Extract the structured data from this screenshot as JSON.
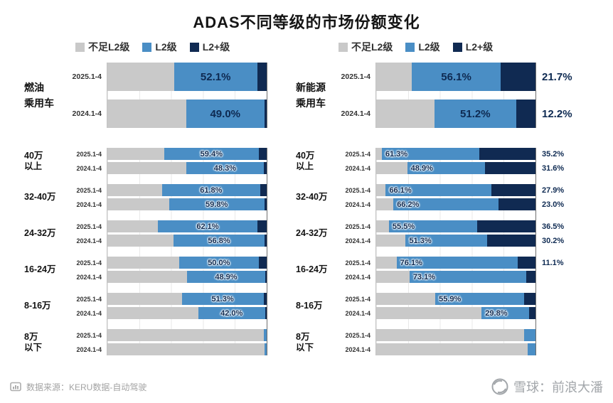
{
  "title": "ADAS不同等级的市场份额变化",
  "colors": {
    "gray": "#c9c9c9",
    "l2": "#4a8ec5",
    "l2plus": "#102a52",
    "label": "#0e2a52"
  },
  "legend": {
    "items": [
      {
        "label": "不足L2级",
        "key": "gray"
      },
      {
        "label": "L2级",
        "key": "l2"
      },
      {
        "label": "L2+级",
        "key": "l2plus"
      }
    ]
  },
  "footer": {
    "source_label": "数据来源：KERU数据-自动驾驶",
    "watermark": "雪球：前浪大潘"
  },
  "chart_data": {
    "type": "bar",
    "orientation": "horizontal",
    "stacked": true,
    "unit": "%",
    "x_range": [
      0,
      100
    ],
    "series_names": [
      "不足L2级",
      "L2级",
      "L2+级"
    ],
    "panels": [
      {
        "title": "燃油乘用车",
        "title_lines": [
          "燃油",
          "乘用车"
        ],
        "overall": [
          {
            "period": "2025.1-4",
            "l2": 52.1,
            "l2_label": "52.1%",
            "l2plus": 6,
            "l2plus_label": ""
          },
          {
            "period": "2024.1-4",
            "l2": 49.0,
            "l2_label": "49.0%",
            "l2plus": 1.5,
            "l2plus_label": ""
          }
        ],
        "price_bands": [
          {
            "label": "40万以上",
            "label_lines": [
              "40万",
              "以上"
            ],
            "rows": [
              {
                "period": "2025.1-4",
                "l2": 59.4,
                "l2_label": "59.4%",
                "l2plus": 5,
                "l2plus_label": ""
              },
              {
                "period": "2024.1-4",
                "l2": 48.3,
                "l2_label": "48.3%",
                "l2plus": 2,
                "l2plus_label": ""
              }
            ]
          },
          {
            "label": "32-40万",
            "label_lines": [
              "32-40万"
            ],
            "rows": [
              {
                "period": "2025.1-4",
                "l2": 61.8,
                "l2_label": "61.8%",
                "l2plus": 4,
                "l2plus_label": ""
              },
              {
                "period": "2024.1-4",
                "l2": 59.8,
                "l2_label": "59.8%",
                "l2plus": 1.5,
                "l2plus_label": ""
              }
            ]
          },
          {
            "label": "24-32万",
            "label_lines": [
              "24-32万"
            ],
            "rows": [
              {
                "period": "2025.1-4",
                "l2": 62.1,
                "l2_label": "62.1%",
                "l2plus": 6,
                "l2plus_label": ""
              },
              {
                "period": "2024.1-4",
                "l2": 56.8,
                "l2_label": "56.8%",
                "l2plus": 1.5,
                "l2plus_label": ""
              }
            ]
          },
          {
            "label": "16-24万",
            "label_lines": [
              "16-24万"
            ],
            "rows": [
              {
                "period": "2025.1-4",
                "l2": 50.0,
                "l2_label": "50.0%",
                "l2plus": 5,
                "l2plus_label": ""
              },
              {
                "period": "2024.1-4",
                "l2": 48.9,
                "l2_label": "48.9%",
                "l2plus": 1,
                "l2plus_label": ""
              }
            ]
          },
          {
            "label": "8-16万",
            "label_lines": [
              "8-16万"
            ],
            "rows": [
              {
                "period": "2025.1-4",
                "l2": 51.3,
                "l2_label": "51.3%",
                "l2plus": 2,
                "l2plus_label": ""
              },
              {
                "period": "2024.1-4",
                "l2": 42.0,
                "l2_label": "42.0%",
                "l2plus": 1,
                "l2plus_label": ""
              }
            ]
          },
          {
            "label": "8万以下",
            "label_lines": [
              "8万",
              "以下"
            ],
            "rows": [
              {
                "period": "2025.1-4",
                "l2": 2,
                "l2_label": "",
                "l2plus": 0,
                "l2plus_label": ""
              },
              {
                "period": "2024.1-4",
                "l2": 1.5,
                "l2_label": "",
                "l2plus": 0,
                "l2plus_label": ""
              }
            ]
          }
        ]
      },
      {
        "title": "新能源乘用车",
        "title_lines": [
          "新能源",
          "乘用车"
        ],
        "overall": [
          {
            "period": "2025.1-4",
            "l2": 56.1,
            "l2_label": "56.1%",
            "l2plus": 21.7,
            "l2plus_label": "21.7%"
          },
          {
            "period": "2024.1-4",
            "l2": 51.2,
            "l2_label": "51.2%",
            "l2plus": 12.2,
            "l2plus_label": "12.2%"
          }
        ],
        "price_bands": [
          {
            "label": "40万以上",
            "label_lines": [
              "40万",
              "以上"
            ],
            "rows": [
              {
                "period": "2025.1-4",
                "l2": 61.3,
                "l2_label": "61.3%",
                "l2plus": 35.2,
                "l2plus_label": "35.2%"
              },
              {
                "period": "2024.1-4",
                "l2": 48.9,
                "l2_label": "48.9%",
                "l2plus": 31.6,
                "l2plus_label": "31.6%"
              }
            ]
          },
          {
            "label": "32-40万",
            "label_lines": [
              "32-40万"
            ],
            "rows": [
              {
                "period": "2025.1-4",
                "l2": 66.1,
                "l2_label": "66.1%",
                "l2plus": 27.9,
                "l2plus_label": "27.9%"
              },
              {
                "period": "2024.1-4",
                "l2": 66.2,
                "l2_label": "66.2%",
                "l2plus": 23.0,
                "l2plus_label": "23.0%"
              }
            ]
          },
          {
            "label": "24-32万",
            "label_lines": [
              "24-32万"
            ],
            "rows": [
              {
                "period": "2025.1-4",
                "l2": 55.5,
                "l2_label": "55.5%",
                "l2plus": 36.5,
                "l2plus_label": "36.5%"
              },
              {
                "period": "2024.1-4",
                "l2": 51.3,
                "l2_label": "51.3%",
                "l2plus": 30.2,
                "l2plus_label": "30.2%"
              }
            ]
          },
          {
            "label": "16-24万",
            "label_lines": [
              "16-24万"
            ],
            "rows": [
              {
                "period": "2025.1-4",
                "l2": 76.1,
                "l2_label": "76.1%",
                "l2plus": 11.1,
                "l2plus_label": "11.1%"
              },
              {
                "period": "2024.1-4",
                "l2": 73.1,
                "l2_label": "73.1%",
                "l2plus": 6,
                "l2plus_label": ""
              }
            ]
          },
          {
            "label": "8-16万",
            "label_lines": [
              "8-16万"
            ],
            "rows": [
              {
                "period": "2025.1-4",
                "l2": 55.9,
                "l2_label": "55.9%",
                "l2plus": 7,
                "l2plus_label": ""
              },
              {
                "period": "2024.1-4",
                "l2": 29.8,
                "l2_label": "29.8%",
                "l2plus": 4,
                "l2plus_label": ""
              }
            ]
          },
          {
            "label": "8万以下",
            "label_lines": [
              "8万",
              "以下"
            ],
            "rows": [
              {
                "period": "2025.1-4",
                "l2": 7,
                "l2_label": "",
                "l2plus": 0,
                "l2plus_label": ""
              },
              {
                "period": "2024.1-4",
                "l2": 5,
                "l2_label": "",
                "l2plus": 0,
                "l2plus_label": ""
              }
            ]
          }
        ]
      }
    ]
  }
}
